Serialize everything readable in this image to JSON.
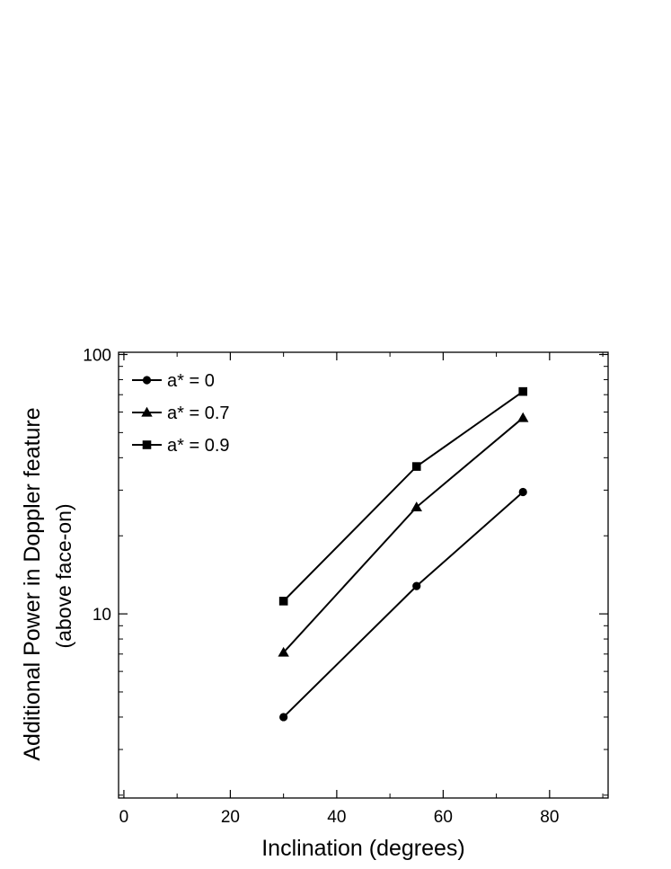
{
  "chart_data": {
    "type": "line",
    "xlabel": "Inclination (degrees)",
    "ylabel": "Additional Power in Doppler feature",
    "ylabel_sub": "(above face-on)",
    "xlim": [
      -1,
      91
    ],
    "ylim": [
      1.95,
      102
    ],
    "yscale": "log",
    "x_ticks": [
      0,
      20,
      40,
      60,
      80
    ],
    "y_ticks": [
      10,
      100
    ],
    "grid": false,
    "legend_position": "top-left",
    "series": [
      {
        "name": "a* = 0",
        "marker": "circle",
        "x": [
          30,
          55,
          75
        ],
        "y": [
          4.0,
          12.8,
          29.5
        ]
      },
      {
        "name": "a* = 0.7",
        "marker": "triangle",
        "x": [
          30,
          55,
          75
        ],
        "y": [
          7.1,
          25.8,
          57.0
        ]
      },
      {
        "name": "a* = 0.9",
        "marker": "square",
        "x": [
          30,
          55,
          75
        ],
        "y": [
          11.2,
          37.0,
          72.0
        ]
      }
    ],
    "colors": {
      "line": "#000000",
      "marker": "#000000",
      "background": "#ffffff"
    }
  }
}
